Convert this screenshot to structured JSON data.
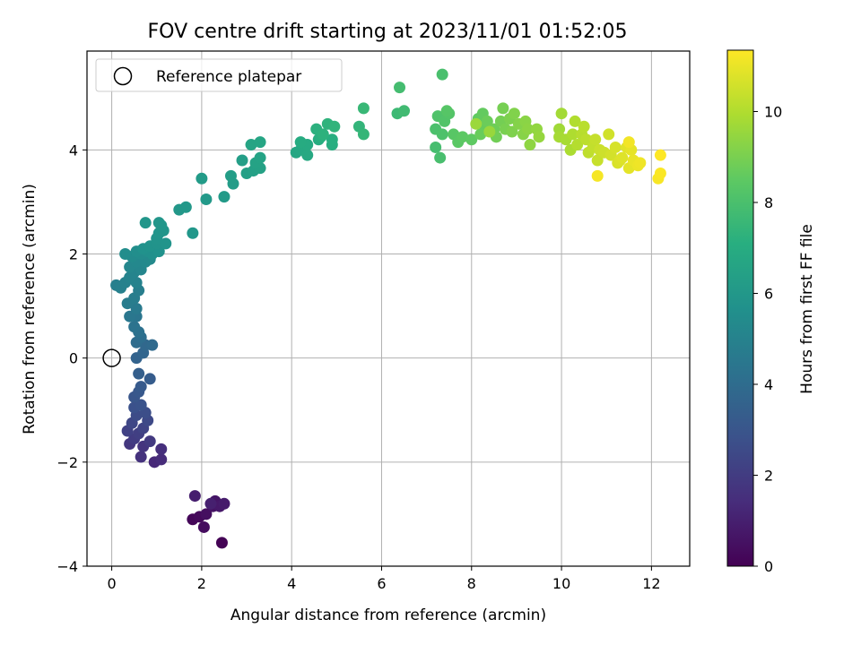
{
  "chart_data": {
    "type": "scatter",
    "title": "FOV centre drift starting at 2023/11/01 01:52:05",
    "xlabel": "Angular distance from reference (arcmin)",
    "ylabel": "Rotation from reference (arcmin)",
    "xlim": [
      -0.55,
      12.85
    ],
    "ylim": [
      -4.0,
      5.9
    ],
    "xticks": [
      0,
      2,
      4,
      6,
      8,
      10,
      12
    ],
    "yticks": [
      -4,
      -2,
      0,
      2,
      4
    ],
    "xtick_labels": [
      "0",
      "2",
      "4",
      "6",
      "8",
      "10",
      "12"
    ],
    "ytick_labels": [
      "−4",
      "−2",
      "0",
      "2",
      "4"
    ],
    "grid": true,
    "legend": {
      "position": "top-left",
      "entries": [
        {
          "label": "Reference platepar",
          "marker": "open-circle"
        }
      ]
    },
    "reference_point": {
      "x": 0,
      "y": 0
    },
    "colorbar": {
      "label": "Hours from first FF file",
      "colormap": "viridis",
      "range": [
        0,
        11.35
      ],
      "ticks": [
        0,
        2,
        4,
        6,
        8,
        10
      ],
      "tick_labels": [
        "0",
        "2",
        "4",
        "6",
        "8",
        "10"
      ]
    },
    "points": [
      {
        "x": 2.45,
        "y": -3.55,
        "t": 0.05
      },
      {
        "x": 1.8,
        "y": -3.1,
        "t": 0.15
      },
      {
        "x": 1.95,
        "y": -3.05,
        "t": 0.25
      },
      {
        "x": 2.05,
        "y": -3.25,
        "t": 0.35
      },
      {
        "x": 2.1,
        "y": -3.0,
        "t": 0.45
      },
      {
        "x": 2.25,
        "y": -2.85,
        "t": 0.55
      },
      {
        "x": 2.3,
        "y": -2.75,
        "t": 0.65
      },
      {
        "x": 2.4,
        "y": -2.85,
        "t": 0.75
      },
      {
        "x": 2.5,
        "y": -2.8,
        "t": 0.85
      },
      {
        "x": 1.85,
        "y": -2.65,
        "t": 0.95
      },
      {
        "x": 2.2,
        "y": -2.8,
        "t": 1.0
      },
      {
        "x": 0.95,
        "y": -2.0,
        "t": 1.3
      },
      {
        "x": 1.1,
        "y": -1.95,
        "t": 1.4
      },
      {
        "x": 1.1,
        "y": -1.75,
        "t": 1.5
      },
      {
        "x": 0.65,
        "y": -1.9,
        "t": 1.6
      },
      {
        "x": 0.7,
        "y": -1.7,
        "t": 1.7
      },
      {
        "x": 0.4,
        "y": -1.65,
        "t": 1.8
      },
      {
        "x": 0.85,
        "y": -1.6,
        "t": 1.9
      },
      {
        "x": 0.5,
        "y": -1.55,
        "t": 2.0
      },
      {
        "x": 0.6,
        "y": -1.45,
        "t": 2.1
      },
      {
        "x": 0.35,
        "y": -1.4,
        "t": 2.2
      },
      {
        "x": 0.7,
        "y": -1.35,
        "t": 2.3
      },
      {
        "x": 0.45,
        "y": -1.25,
        "t": 2.4
      },
      {
        "x": 0.8,
        "y": -1.2,
        "t": 2.5
      },
      {
        "x": 0.55,
        "y": -1.1,
        "t": 2.6
      },
      {
        "x": 0.75,
        "y": -1.05,
        "t": 2.7
      },
      {
        "x": 0.5,
        "y": -0.95,
        "t": 2.8
      },
      {
        "x": 0.65,
        "y": -0.9,
        "t": 2.9
      },
      {
        "x": 0.5,
        "y": -0.75,
        "t": 3.0
      },
      {
        "x": 0.6,
        "y": -0.65,
        "t": 3.1
      },
      {
        "x": 0.65,
        "y": -0.55,
        "t": 3.2
      },
      {
        "x": 0.85,
        "y": -0.4,
        "t": 3.3
      },
      {
        "x": 0.6,
        "y": -0.3,
        "t": 3.4
      },
      {
        "x": 0.55,
        "y": 0.0,
        "t": 3.6
      },
      {
        "x": 0.7,
        "y": 0.1,
        "t": 3.7
      },
      {
        "x": 0.75,
        "y": 0.25,
        "t": 3.8
      },
      {
        "x": 0.9,
        "y": 0.25,
        "t": 3.9
      },
      {
        "x": 0.55,
        "y": 0.3,
        "t": 4.0
      },
      {
        "x": 0.65,
        "y": 0.4,
        "t": 4.1
      },
      {
        "x": 0.6,
        "y": 0.5,
        "t": 4.2
      },
      {
        "x": 0.5,
        "y": 0.6,
        "t": 4.3
      },
      {
        "x": 0.55,
        "y": 0.8,
        "t": 4.4
      },
      {
        "x": 0.4,
        "y": 0.8,
        "t": 4.5
      },
      {
        "x": 0.55,
        "y": 0.95,
        "t": 4.6
      },
      {
        "x": 0.35,
        "y": 1.05,
        "t": 4.7
      },
      {
        "x": 0.5,
        "y": 1.15,
        "t": 4.75
      },
      {
        "x": 0.6,
        "y": 1.3,
        "t": 4.8
      },
      {
        "x": 0.1,
        "y": 1.4,
        "t": 4.85
      },
      {
        "x": 0.2,
        "y": 1.35,
        "t": 4.9
      },
      {
        "x": 0.3,
        "y": 1.45,
        "t": 4.95
      },
      {
        "x": 0.55,
        "y": 1.45,
        "t": 5.0
      },
      {
        "x": 0.4,
        "y": 1.55,
        "t": 5.05
      },
      {
        "x": 0.5,
        "y": 1.65,
        "t": 5.1
      },
      {
        "x": 0.65,
        "y": 1.7,
        "t": 5.15
      },
      {
        "x": 0.4,
        "y": 1.75,
        "t": 5.2
      },
      {
        "x": 0.55,
        "y": 1.85,
        "t": 5.25
      },
      {
        "x": 0.75,
        "y": 1.85,
        "t": 5.3
      },
      {
        "x": 0.85,
        "y": 1.9,
        "t": 5.35
      },
      {
        "x": 0.45,
        "y": 1.95,
        "t": 5.4
      },
      {
        "x": 0.65,
        "y": 2.0,
        "t": 5.45
      },
      {
        "x": 0.3,
        "y": 2.0,
        "t": 5.5
      },
      {
        "x": 0.55,
        "y": 2.05,
        "t": 5.55
      },
      {
        "x": 0.8,
        "y": 2.05,
        "t": 5.6
      },
      {
        "x": 0.9,
        "y": 2.0,
        "t": 5.65
      },
      {
        "x": 1.05,
        "y": 2.05,
        "t": 5.7
      },
      {
        "x": 0.7,
        "y": 2.1,
        "t": 5.72
      },
      {
        "x": 0.85,
        "y": 2.15,
        "t": 5.75
      },
      {
        "x": 1.0,
        "y": 2.2,
        "t": 5.78
      },
      {
        "x": 1.2,
        "y": 2.2,
        "t": 5.8
      },
      {
        "x": 1.0,
        "y": 2.3,
        "t": 5.82
      },
      {
        "x": 1.05,
        "y": 2.4,
        "t": 5.85
      },
      {
        "x": 1.15,
        "y": 2.45,
        "t": 5.88
      },
      {
        "x": 1.1,
        "y": 2.55,
        "t": 5.9
      },
      {
        "x": 1.05,
        "y": 2.6,
        "t": 5.92
      },
      {
        "x": 0.75,
        "y": 2.6,
        "t": 5.94
      },
      {
        "x": 1.8,
        "y": 2.4,
        "t": 5.96
      },
      {
        "x": 1.5,
        "y": 2.85,
        "t": 5.98
      },
      {
        "x": 1.65,
        "y": 2.9,
        "t": 6.0
      },
      {
        "x": 2.1,
        "y": 3.05,
        "t": 6.05
      },
      {
        "x": 2.5,
        "y": 3.1,
        "t": 6.1
      },
      {
        "x": 2.0,
        "y": 3.45,
        "t": 6.15
      },
      {
        "x": 2.7,
        "y": 3.35,
        "t": 6.2
      },
      {
        "x": 2.65,
        "y": 3.5,
        "t": 6.25
      },
      {
        "x": 2.9,
        "y": 3.8,
        "t": 6.3
      },
      {
        "x": 3.0,
        "y": 3.55,
        "t": 6.35
      },
      {
        "x": 3.15,
        "y": 3.6,
        "t": 6.4
      },
      {
        "x": 3.3,
        "y": 3.65,
        "t": 6.45
      },
      {
        "x": 3.2,
        "y": 3.75,
        "t": 6.5
      },
      {
        "x": 3.3,
        "y": 3.85,
        "t": 6.55
      },
      {
        "x": 3.1,
        "y": 4.1,
        "t": 6.6
      },
      {
        "x": 3.3,
        "y": 4.15,
        "t": 6.65
      },
      {
        "x": 4.1,
        "y": 3.95,
        "t": 6.7
      },
      {
        "x": 4.2,
        "y": 4.0,
        "t": 6.75
      },
      {
        "x": 4.35,
        "y": 3.9,
        "t": 6.8
      },
      {
        "x": 4.25,
        "y": 4.1,
        "t": 6.85
      },
      {
        "x": 4.35,
        "y": 4.1,
        "t": 6.9
      },
      {
        "x": 4.2,
        "y": 4.15,
        "t": 6.95
      },
      {
        "x": 4.6,
        "y": 4.2,
        "t": 7.0
      },
      {
        "x": 4.9,
        "y": 4.1,
        "t": 7.05
      },
      {
        "x": 4.9,
        "y": 4.2,
        "t": 7.1
      },
      {
        "x": 4.65,
        "y": 4.25,
        "t": 7.15
      },
      {
        "x": 4.55,
        "y": 4.4,
        "t": 7.2
      },
      {
        "x": 4.7,
        "y": 4.3,
        "t": 7.25
      },
      {
        "x": 4.8,
        "y": 4.5,
        "t": 7.3
      },
      {
        "x": 4.95,
        "y": 4.45,
        "t": 7.35
      },
      {
        "x": 5.5,
        "y": 4.45,
        "t": 7.4
      },
      {
        "x": 5.6,
        "y": 4.3,
        "t": 7.45
      },
      {
        "x": 5.6,
        "y": 4.8,
        "t": 7.55
      },
      {
        "x": 6.35,
        "y": 4.7,
        "t": 7.65
      },
      {
        "x": 6.5,
        "y": 4.75,
        "t": 7.75
      },
      {
        "x": 6.4,
        "y": 5.2,
        "t": 7.85
      },
      {
        "x": 7.2,
        "y": 4.05,
        "t": 7.9
      },
      {
        "x": 7.3,
        "y": 3.85,
        "t": 7.95
      },
      {
        "x": 7.35,
        "y": 5.45,
        "t": 8.0
      },
      {
        "x": 7.2,
        "y": 4.4,
        "t": 8.05
      },
      {
        "x": 7.35,
        "y": 4.3,
        "t": 8.1
      },
      {
        "x": 7.25,
        "y": 4.65,
        "t": 8.15
      },
      {
        "x": 7.4,
        "y": 4.55,
        "t": 8.2
      },
      {
        "x": 7.5,
        "y": 4.7,
        "t": 8.25
      },
      {
        "x": 7.45,
        "y": 4.75,
        "t": 8.3
      },
      {
        "x": 7.6,
        "y": 4.3,
        "t": 8.35
      },
      {
        "x": 7.7,
        "y": 4.15,
        "t": 8.4
      },
      {
        "x": 7.8,
        "y": 4.25,
        "t": 8.45
      },
      {
        "x": 8.0,
        "y": 4.2,
        "t": 8.5
      },
      {
        "x": 8.15,
        "y": 4.6,
        "t": 8.55
      },
      {
        "x": 8.25,
        "y": 4.7,
        "t": 8.6
      },
      {
        "x": 8.3,
        "y": 4.45,
        "t": 8.65
      },
      {
        "x": 8.2,
        "y": 4.3,
        "t": 8.7
      },
      {
        "x": 8.35,
        "y": 4.55,
        "t": 8.75
      },
      {
        "x": 8.5,
        "y": 4.4,
        "t": 8.8
      },
      {
        "x": 8.55,
        "y": 4.25,
        "t": 8.85
      },
      {
        "x": 8.65,
        "y": 4.55,
        "t": 8.9
      },
      {
        "x": 8.7,
        "y": 4.8,
        "t": 8.95
      },
      {
        "x": 8.75,
        "y": 4.4,
        "t": 9.0
      },
      {
        "x": 8.85,
        "y": 4.6,
        "t": 9.05
      },
      {
        "x": 8.9,
        "y": 4.35,
        "t": 9.1
      },
      {
        "x": 8.95,
        "y": 4.7,
        "t": 9.15
      },
      {
        "x": 9.05,
        "y": 4.5,
        "t": 9.2
      },
      {
        "x": 9.15,
        "y": 4.3,
        "t": 9.25
      },
      {
        "x": 9.2,
        "y": 4.55,
        "t": 9.3
      },
      {
        "x": 9.25,
        "y": 4.4,
        "t": 9.35
      },
      {
        "x": 9.3,
        "y": 4.1,
        "t": 9.4
      },
      {
        "x": 9.45,
        "y": 4.4,
        "t": 9.45
      },
      {
        "x": 9.5,
        "y": 4.25,
        "t": 9.5
      },
      {
        "x": 8.4,
        "y": 4.35,
        "t": 9.55
      },
      {
        "x": 8.1,
        "y": 4.5,
        "t": 9.6
      },
      {
        "x": 9.95,
        "y": 4.4,
        "t": 9.7
      },
      {
        "x": 10.0,
        "y": 4.7,
        "t": 9.75
      },
      {
        "x": 9.95,
        "y": 4.25,
        "t": 9.8
      },
      {
        "x": 10.1,
        "y": 4.2,
        "t": 9.85
      },
      {
        "x": 10.2,
        "y": 4.0,
        "t": 9.9
      },
      {
        "x": 10.25,
        "y": 4.3,
        "t": 9.95
      },
      {
        "x": 10.3,
        "y": 4.55,
        "t": 10.0
      },
      {
        "x": 10.35,
        "y": 4.1,
        "t": 10.05
      },
      {
        "x": 10.45,
        "y": 4.3,
        "t": 10.1
      },
      {
        "x": 10.5,
        "y": 4.45,
        "t": 10.15
      },
      {
        "x": 10.55,
        "y": 4.2,
        "t": 10.2
      },
      {
        "x": 10.6,
        "y": 3.95,
        "t": 10.25
      },
      {
        "x": 10.7,
        "y": 4.05,
        "t": 10.3
      },
      {
        "x": 10.75,
        "y": 4.2,
        "t": 10.35
      },
      {
        "x": 10.8,
        "y": 3.8,
        "t": 10.4
      },
      {
        "x": 10.85,
        "y": 4.0,
        "t": 10.45
      },
      {
        "x": 10.95,
        "y": 3.95,
        "t": 10.5
      },
      {
        "x": 11.05,
        "y": 4.3,
        "t": 10.55
      },
      {
        "x": 11.1,
        "y": 3.9,
        "t": 10.6
      },
      {
        "x": 11.2,
        "y": 4.05,
        "t": 10.65
      },
      {
        "x": 11.25,
        "y": 3.75,
        "t": 10.7
      },
      {
        "x": 11.3,
        "y": 3.8,
        "t": 10.75
      },
      {
        "x": 11.35,
        "y": 3.85,
        "t": 10.8
      },
      {
        "x": 11.45,
        "y": 4.05,
        "t": 10.85
      },
      {
        "x": 11.5,
        "y": 3.65,
        "t": 10.9
      },
      {
        "x": 11.55,
        "y": 4.0,
        "t": 10.95
      },
      {
        "x": 11.6,
        "y": 3.8,
        "t": 11.0
      },
      {
        "x": 11.7,
        "y": 3.7,
        "t": 11.05
      },
      {
        "x": 11.75,
        "y": 3.75,
        "t": 11.1
      },
      {
        "x": 11.5,
        "y": 4.15,
        "t": 11.15
      },
      {
        "x": 10.8,
        "y": 3.5,
        "t": 11.2
      },
      {
        "x": 12.15,
        "y": 3.45,
        "t": 11.25
      },
      {
        "x": 12.2,
        "y": 3.55,
        "t": 11.3
      },
      {
        "x": 12.2,
        "y": 3.9,
        "t": 11.35
      }
    ]
  }
}
